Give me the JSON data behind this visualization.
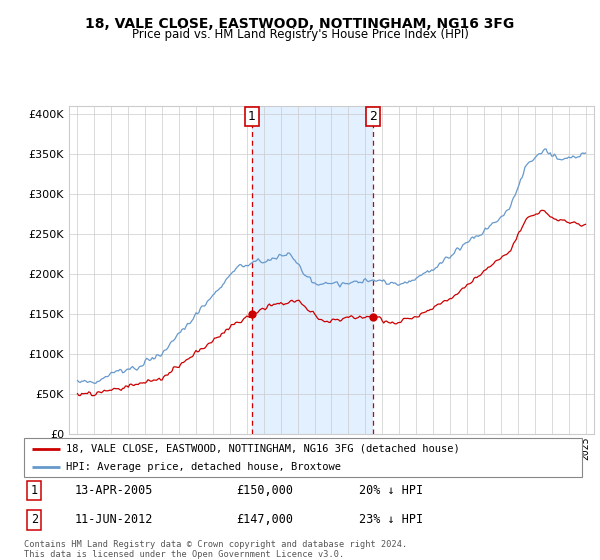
{
  "title1": "18, VALE CLOSE, EASTWOOD, NOTTINGHAM, NG16 3FG",
  "title2": "Price paid vs. HM Land Registry's House Price Index (HPI)",
  "legend_line1": "18, VALE CLOSE, EASTWOOD, NOTTINGHAM, NG16 3FG (detached house)",
  "legend_line2": "HPI: Average price, detached house, Broxtowe",
  "annotation1_date": "13-APR-2005",
  "annotation1_price": "£150,000",
  "annotation1_hpi": "20% ↓ HPI",
  "annotation2_date": "11-JUN-2012",
  "annotation2_price": "£147,000",
  "annotation2_hpi": "23% ↓ HPI",
  "footer": "Contains HM Land Registry data © Crown copyright and database right 2024.\nThis data is licensed under the Open Government Licence v3.0.",
  "hpi_color": "#6699cc",
  "price_color": "#cc0000",
  "shade_color": "#ddeeff",
  "annotation_box_color": "#cc0000",
  "ylim": [
    0,
    410000
  ],
  "yticks": [
    0,
    50000,
    100000,
    150000,
    200000,
    250000,
    300000,
    350000,
    400000
  ],
  "sale1_year": 2005.28,
  "sale1_price": 150000,
  "sale2_year": 2012.44,
  "sale2_price": 147000,
  "xmin": 1994.5,
  "xmax": 2025.5
}
